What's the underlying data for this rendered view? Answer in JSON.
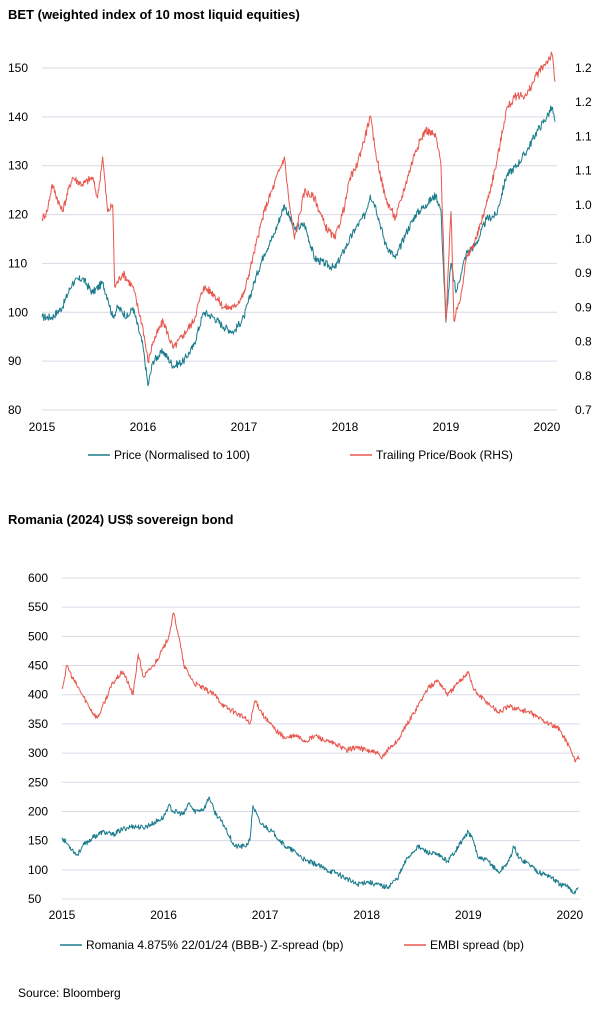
{
  "source": "Source: Bloomberg",
  "colors": {
    "teal": "#1b7c8c",
    "red": "#e8584f",
    "grid": "#d9d9e6"
  },
  "chart_data": [
    {
      "type": "line",
      "title": "BET (weighted index of 10 most liquid equities)",
      "x_ticks": [
        "2015",
        "2016",
        "2017",
        "2018",
        "2019",
        "2020"
      ],
      "y_left_ticks": [
        "80",
        "90",
        "100",
        "110",
        "120",
        "130",
        "140",
        "150"
      ],
      "y_right_ticks": [
        "0.7",
        "0.8",
        "0.8",
        "0.9",
        "0.9",
        "1.0",
        "1.0",
        "1.1",
        "1.1",
        "1.2",
        "1.2"
      ],
      "ylim_left": [
        80,
        150
      ],
      "ylim_right": [
        0.7,
        1.2
      ],
      "legend_position": "bottom",
      "series": [
        {
          "name": "Price (Normalised to 100)",
          "axis": "left",
          "color": "#1b7c8c",
          "points": [
            [
              2015.0,
              99
            ],
            [
              2015.1,
              99
            ],
            [
              2015.2,
              101
            ],
            [
              2015.3,
              106
            ],
            [
              2015.4,
              107
            ],
            [
              2015.5,
              104
            ],
            [
              2015.6,
              106
            ],
            [
              2015.65,
              103
            ],
            [
              2015.7,
              99
            ],
            [
              2015.75,
              101
            ],
            [
              2015.85,
              99
            ],
            [
              2015.9,
              101
            ],
            [
              2016.0,
              93
            ],
            [
              2016.05,
              85
            ],
            [
              2016.1,
              90
            ],
            [
              2016.2,
              92
            ],
            [
              2016.3,
              89
            ],
            [
              2016.4,
              90
            ],
            [
              2016.5,
              93
            ],
            [
              2016.6,
              100
            ],
            [
              2016.7,
              99
            ],
            [
              2016.8,
              97
            ],
            [
              2016.9,
              96
            ],
            [
              2017.0,
              99
            ],
            [
              2017.1,
              106
            ],
            [
              2017.2,
              112
            ],
            [
              2017.3,
              116
            ],
            [
              2017.4,
              122
            ],
            [
              2017.5,
              117
            ],
            [
              2017.6,
              118
            ],
            [
              2017.7,
              111
            ],
            [
              2017.8,
              110
            ],
            [
              2017.9,
              109
            ],
            [
              2018.0,
              113
            ],
            [
              2018.1,
              117
            ],
            [
              2018.2,
              120
            ],
            [
              2018.25,
              124
            ],
            [
              2018.3,
              122
            ],
            [
              2018.4,
              114
            ],
            [
              2018.5,
              111
            ],
            [
              2018.6,
              116
            ],
            [
              2018.7,
              120
            ],
            [
              2018.8,
              122
            ],
            [
              2018.9,
              124
            ],
            [
              2018.95,
              121
            ],
            [
              2019.0,
              98
            ],
            [
              2019.05,
              110
            ],
            [
              2019.1,
              104
            ],
            [
              2019.15,
              108
            ],
            [
              2019.2,
              112
            ],
            [
              2019.3,
              114
            ],
            [
              2019.4,
              119
            ],
            [
              2019.5,
              120
            ],
            [
              2019.6,
              128
            ],
            [
              2019.7,
              130
            ],
            [
              2019.8,
              133
            ],
            [
              2019.9,
              137
            ],
            [
              2020.0,
              140
            ],
            [
              2020.05,
              142
            ],
            [
              2020.08,
              139
            ]
          ]
        },
        {
          "name": "Trailing Price/Book (RHS)",
          "axis": "right",
          "color": "#e8584f",
          "points": [
            [
              2015.0,
              0.98
            ],
            [
              2015.05,
              0.99
            ],
            [
              2015.1,
              1.03
            ],
            [
              2015.2,
              0.99
            ],
            [
              2015.3,
              1.04
            ],
            [
              2015.4,
              1.03
            ],
            [
              2015.5,
              1.04
            ],
            [
              2015.55,
              1.01
            ],
            [
              2015.6,
              1.07
            ],
            [
              2015.65,
              0.99
            ],
            [
              2015.7,
              1.0
            ],
            [
              2015.72,
              0.88
            ],
            [
              2015.8,
              0.9
            ],
            [
              2015.9,
              0.88
            ],
            [
              2016.0,
              0.82
            ],
            [
              2016.05,
              0.77
            ],
            [
              2016.1,
              0.8
            ],
            [
              2016.2,
              0.83
            ],
            [
              2016.3,
              0.79
            ],
            [
              2016.4,
              0.81
            ],
            [
              2016.5,
              0.83
            ],
            [
              2016.6,
              0.88
            ],
            [
              2016.7,
              0.87
            ],
            [
              2016.8,
              0.85
            ],
            [
              2016.9,
              0.85
            ],
            [
              2017.0,
              0.87
            ],
            [
              2017.1,
              0.93
            ],
            [
              2017.2,
              0.99
            ],
            [
              2017.3,
              1.03
            ],
            [
              2017.4,
              1.07
            ],
            [
              2017.45,
              1.0
            ],
            [
              2017.5,
              0.95
            ],
            [
              2017.6,
              1.02
            ],
            [
              2017.7,
              1.01
            ],
            [
              2017.8,
              0.97
            ],
            [
              2017.9,
              0.95
            ],
            [
              2018.0,
              1.0
            ],
            [
              2018.05,
              1.04
            ],
            [
              2018.1,
              1.05
            ],
            [
              2018.2,
              1.1
            ],
            [
              2018.25,
              1.13
            ],
            [
              2018.3,
              1.08
            ],
            [
              2018.4,
              1.01
            ],
            [
              2018.5,
              0.98
            ],
            [
              2018.6,
              1.03
            ],
            [
              2018.7,
              1.08
            ],
            [
              2018.8,
              1.11
            ],
            [
              2018.9,
              1.1
            ],
            [
              2018.95,
              1.06
            ],
            [
              2019.0,
              0.83
            ],
            [
              2019.05,
              0.99
            ],
            [
              2019.08,
              0.83
            ],
            [
              2019.15,
              0.87
            ],
            [
              2019.2,
              0.92
            ],
            [
              2019.3,
              0.95
            ],
            [
              2019.4,
              1.0
            ],
            [
              2019.5,
              1.06
            ],
            [
              2019.6,
              1.14
            ],
            [
              2019.7,
              1.16
            ],
            [
              2019.8,
              1.16
            ],
            [
              2019.9,
              1.19
            ],
            [
              2020.0,
              1.21
            ],
            [
              2020.05,
              1.22
            ],
            [
              2020.08,
              1.18
            ]
          ]
        }
      ]
    },
    {
      "type": "line",
      "title": "Romania (2024) US$ sovereign bond",
      "x_ticks": [
        "2015",
        "2016",
        "2017",
        "2018",
        "2019",
        "2020"
      ],
      "y_left_ticks": [
        "50",
        "100",
        "150",
        "200",
        "250",
        "300",
        "350",
        "400",
        "450",
        "500",
        "550",
        "600"
      ],
      "ylim": [
        50,
        600
      ],
      "legend_position": "bottom",
      "series": [
        {
          "name": "Romania 4.875% 22/01/24 (BBB-) Z-spread (bp)",
          "axis": "left",
          "color": "#1b7c8c",
          "points": [
            [
              2015.0,
              155
            ],
            [
              2015.05,
              145
            ],
            [
              2015.1,
              135
            ],
            [
              2015.15,
              125
            ],
            [
              2015.2,
              140
            ],
            [
              2015.3,
              155
            ],
            [
              2015.4,
              165
            ],
            [
              2015.5,
              160
            ],
            [
              2015.6,
              170
            ],
            [
              2015.7,
              175
            ],
            [
              2015.8,
              172
            ],
            [
              2015.9,
              180
            ],
            [
              2016.0,
              190
            ],
            [
              2016.05,
              210
            ],
            [
              2016.1,
              200
            ],
            [
              2016.2,
              195
            ],
            [
              2016.25,
              215
            ],
            [
              2016.3,
              200
            ],
            [
              2016.4,
              205
            ],
            [
              2016.45,
              225
            ],
            [
              2016.5,
              200
            ],
            [
              2016.6,
              175
            ],
            [
              2016.7,
              140
            ],
            [
              2016.8,
              140
            ],
            [
              2016.85,
              150
            ],
            [
              2016.88,
              210
            ],
            [
              2016.95,
              180
            ],
            [
              2017.0,
              175
            ],
            [
              2017.1,
              160
            ],
            [
              2017.2,
              140
            ],
            [
              2017.3,
              130
            ],
            [
              2017.4,
              115
            ],
            [
              2017.5,
              110
            ],
            [
              2017.6,
              100
            ],
            [
              2017.7,
              95
            ],
            [
              2017.8,
              85
            ],
            [
              2017.9,
              75
            ],
            [
              2018.0,
              80
            ],
            [
              2018.1,
              75
            ],
            [
              2018.2,
              70
            ],
            [
              2018.3,
              85
            ],
            [
              2018.4,
              120
            ],
            [
              2018.5,
              140
            ],
            [
              2018.6,
              130
            ],
            [
              2018.7,
              125
            ],
            [
              2018.8,
              115
            ],
            [
              2018.9,
              140
            ],
            [
              2019.0,
              165
            ],
            [
              2019.05,
              150
            ],
            [
              2019.1,
              120
            ],
            [
              2019.2,
              115
            ],
            [
              2019.3,
              95
            ],
            [
              2019.4,
              115
            ],
            [
              2019.45,
              140
            ],
            [
              2019.5,
              120
            ],
            [
              2019.6,
              110
            ],
            [
              2019.7,
              95
            ],
            [
              2019.8,
              90
            ],
            [
              2019.9,
              75
            ],
            [
              2020.0,
              70
            ],
            [
              2020.03,
              60
            ],
            [
              2020.06,
              65
            ],
            [
              2020.08,
              70
            ]
          ]
        },
        {
          "name": "EMBI spread (bp)",
          "axis": "left",
          "color": "#e8584f",
          "points": [
            [
              2015.0,
              410
            ],
            [
              2015.05,
              450
            ],
            [
              2015.1,
              430
            ],
            [
              2015.2,
              400
            ],
            [
              2015.3,
              370
            ],
            [
              2015.35,
              360
            ],
            [
              2015.4,
              380
            ],
            [
              2015.5,
              420
            ],
            [
              2015.6,
              440
            ],
            [
              2015.7,
              400
            ],
            [
              2015.75,
              470
            ],
            [
              2015.8,
              430
            ],
            [
              2015.9,
              450
            ],
            [
              2016.0,
              480
            ],
            [
              2016.05,
              500
            ],
            [
              2016.1,
              540
            ],
            [
              2016.15,
              500
            ],
            [
              2016.2,
              450
            ],
            [
              2016.3,
              420
            ],
            [
              2016.4,
              410
            ],
            [
              2016.5,
              400
            ],
            [
              2016.6,
              380
            ],
            [
              2016.7,
              370
            ],
            [
              2016.8,
              360
            ],
            [
              2016.85,
              350
            ],
            [
              2016.9,
              390
            ],
            [
              2017.0,
              360
            ],
            [
              2017.1,
              340
            ],
            [
              2017.2,
              325
            ],
            [
              2017.3,
              330
            ],
            [
              2017.4,
              320
            ],
            [
              2017.5,
              330
            ],
            [
              2017.6,
              320
            ],
            [
              2017.7,
              315
            ],
            [
              2017.8,
              305
            ],
            [
              2017.9,
              310
            ],
            [
              2018.0,
              305
            ],
            [
              2018.1,
              300
            ],
            [
              2018.15,
              290
            ],
            [
              2018.2,
              305
            ],
            [
              2018.3,
              320
            ],
            [
              2018.4,
              350
            ],
            [
              2018.5,
              380
            ],
            [
              2018.6,
              410
            ],
            [
              2018.7,
              425
            ],
            [
              2018.8,
              400
            ],
            [
              2018.9,
              420
            ],
            [
              2019.0,
              440
            ],
            [
              2019.05,
              410
            ],
            [
              2019.1,
              400
            ],
            [
              2019.2,
              385
            ],
            [
              2019.3,
              370
            ],
            [
              2019.4,
              380
            ],
            [
              2019.5,
              375
            ],
            [
              2019.6,
              370
            ],
            [
              2019.7,
              360
            ],
            [
              2019.8,
              350
            ],
            [
              2019.9,
              340
            ],
            [
              2020.0,
              310
            ],
            [
              2020.05,
              285
            ],
            [
              2020.08,
              295
            ],
            [
              2020.1,
              290
            ]
          ]
        }
      ]
    }
  ]
}
